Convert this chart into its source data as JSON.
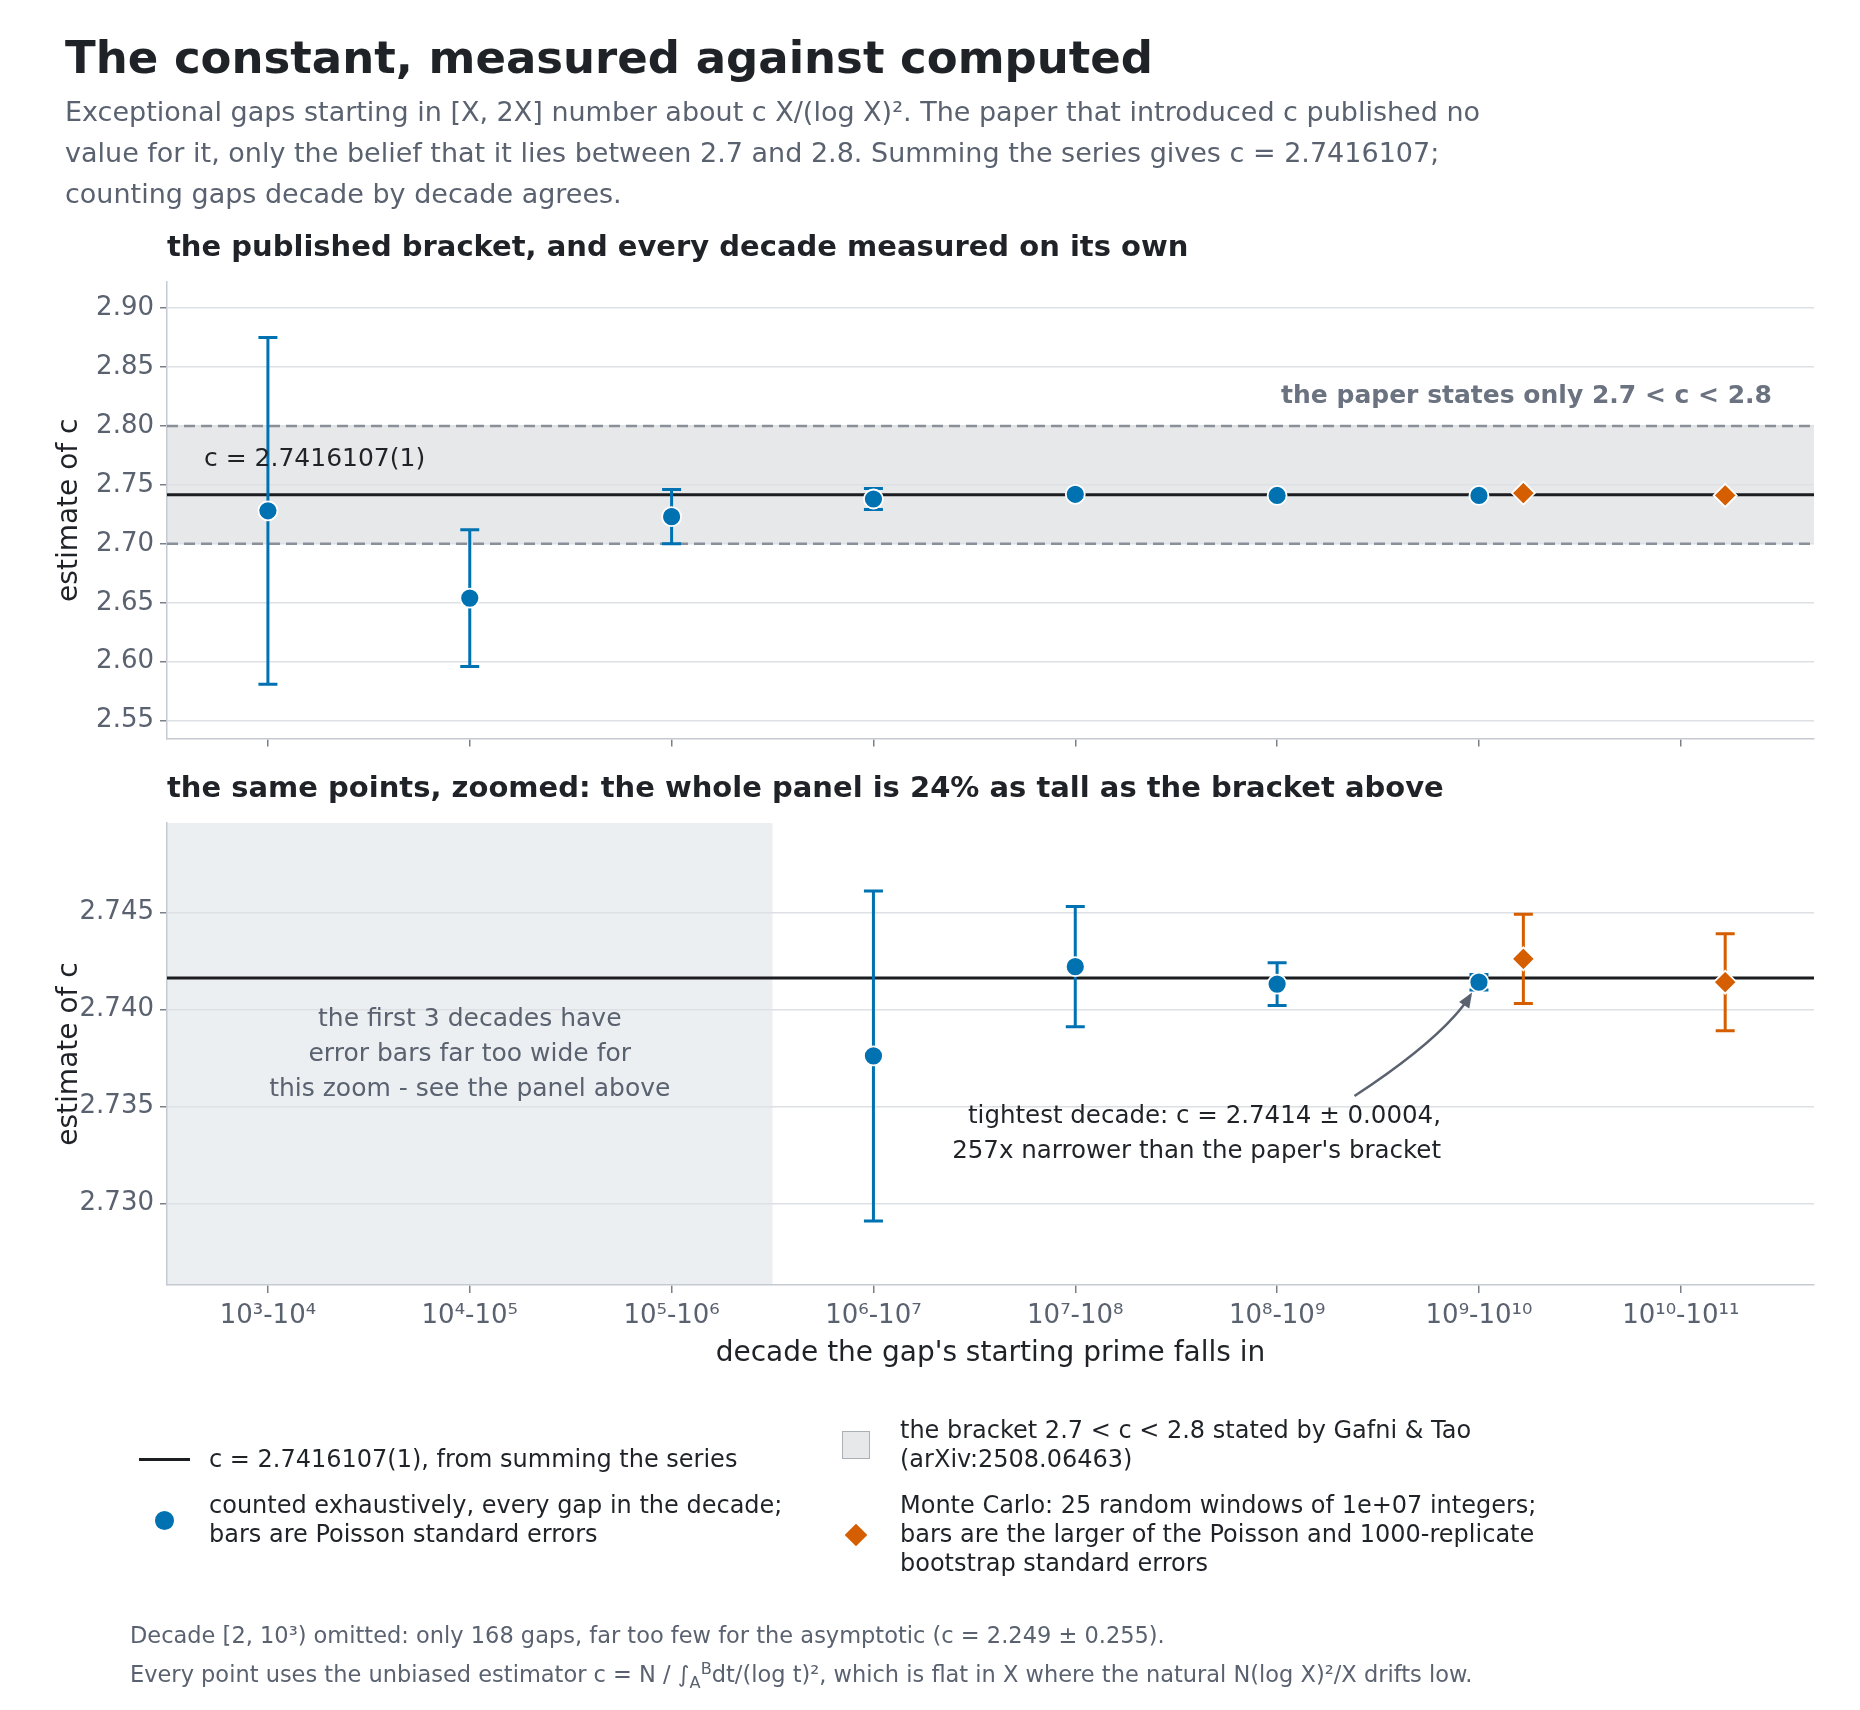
{
  "chart_data": [
    {
      "type": "scatter",
      "title": "The constant, measured against computed",
      "subtitle": "Exceptional gaps starting in [X, 2X] number about c X/(log X)². The paper that introduced c published no value for it, only the belief that it lies between 2.7 and 2.8. Summing the series gives c = 2.7416107; counting gaps decade by decade agrees.",
      "ylabel": "estimate of c",
      "categories": [
        null,
        null,
        null,
        null,
        null,
        null,
        null,
        null
      ],
      "series": [
        {
          "name": "counted exhaustively, every gap in the decade;\nbars are Poisson standard errors",
          "color": "#0072b2",
          "marker": "circle",
          "values": [
            2.728,
            2.654,
            2.723,
            2.738,
            2.742,
            2.741,
            2.741,
            null
          ],
          "errors": [
            0.147,
            0.058,
            0.023,
            0.009,
            null,
            null,
            null,
            null
          ]
        },
        {
          "name": "Monte Carlo: 25 random windows of 1e+07 integers;\nbars are the larger of the Poisson and 1000-replicate\nbootstrap standard errors",
          "color": "#d55e00",
          "marker": "diamond",
          "values": [
            null,
            null,
            null,
            null,
            null,
            null,
            2.743,
            2.741
          ]
        }
      ],
      "ylim": [
        2.535,
        2.922
      ],
      "yticks": [
        2.55,
        {
          "value": 2.6,
          "label": "2.60"
        },
        2.65,
        {
          "value": 2.7,
          "label": "2.70"
        },
        2.75,
        {
          "value": 2.8,
          "label": "2.80"
        },
        2.85,
        {
          "value": 2.9,
          "label": "2.90"
        }
      ],
      "grid": "y",
      "legend": "bottom",
      "ref_lines": [
        {
          "axis": "y",
          "value": 2.7416107,
          "label": "c = 2.7416107(1), from summing the series",
          "color": "#1b1d21"
        }
      ],
      "bands": [
        {
          "axis": "y",
          "from": 2.7,
          "to": 2.8,
          "label": "the bracket 2.7 < c < 2.8 stated by Gafni & Tao\n(arXiv:2508.06463)",
          "color": "#e7e8ea"
        }
      ],
      "annotations": [
        "the published bracket, and every decade measured on its own",
        {
          "text": "c = 2.7416107(1)",
          "y": 2.7416107
        },
        {
          "text": "the paper states only 2.7 < c < 2.8",
          "y": 2.8
        }
      ]
    },
    {
      "type": "scatter",
      "title": "the same points, zoomed: the whole panel is 24% as tall as the bracket above",
      "xlabel": "decade the gap's starting prime falls in",
      "ylabel": "estimate of c",
      "categories": [
        "10³-10⁴",
        "10⁴-10⁵",
        "10⁵-10⁶",
        "10⁶-10⁷",
        "10⁷-10⁸",
        "10⁸-10⁹",
        "10⁹-10¹⁰",
        "10¹⁰-10¹¹"
      ],
      "series": [
        {
          "color": "#0072b2",
          "marker": "circle",
          "values": [
            null,
            null,
            null,
            2.7376,
            2.7422,
            2.7413,
            2.7414,
            null
          ],
          "errors": [
            null,
            null,
            null,
            0.0085,
            0.0031,
            0.0011,
            0.0004,
            null
          ]
        },
        {
          "color": "#d55e00",
          "marker": "diamond",
          "values": [
            null,
            null,
            null,
            null,
            null,
            null,
            2.7426,
            2.7414
          ],
          "errors": [
            null,
            null,
            null,
            null,
            null,
            null,
            0.0023,
            0.0025
          ]
        }
      ],
      "ylim": [
        2.7258,
        2.7496
      ],
      "yticks": [
        {
          "value": 2.73,
          "label": "2.730"
        },
        2.735,
        {
          "value": 2.74,
          "label": "2.740"
        },
        2.745
      ],
      "grid": "y",
      "ref_lines": [
        {
          "axis": "y",
          "value": 2.7416107,
          "color": "#1b1d21"
        }
      ],
      "bands": [
        {
          "axis": "x",
          "from": "10³-10⁴",
          "to": "10⁵-10⁶",
          "label": "the first 3 decades have\nerror bars far too wide for\nthis zoom - see the panel above",
          "color": "#eceff2"
        }
      ],
      "annotations": [
        "tightest decade: c = 2.7414 ± 0.0004,\n257x narrower than the paper's bracket",
        "Decade [2, 10³) omitted: only 168 gaps, far too few for the asymptotic (c = 2.249 ± 0.255).",
        "Every point uses the unbiased estimator c = N / ∫$_{A}$$^{B}$dt/(log t)², which is flat in X where the natural N(log X)²/X drifts low."
      ]
    }
  ]
}
